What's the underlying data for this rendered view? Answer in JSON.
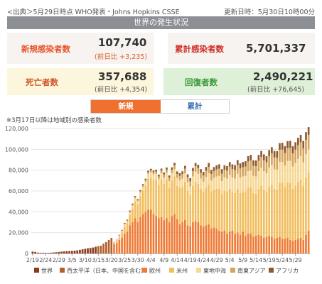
{
  "header": {
    "source": "<出典＞5月29日時点 WHO発表・Johns Hopkins CSSE",
    "updated": "更新日時：5月30日10時00分"
  },
  "banner": {
    "title": "世界の発生状況"
  },
  "stats": {
    "new_cases": {
      "label": "新規感染者数",
      "value": "107,740",
      "diff": "(前日比 +3,235)"
    },
    "total_cases": {
      "label": "累計感染者数",
      "value": "5,701,337"
    },
    "deaths": {
      "label": "死亡者数",
      "value": "357,688",
      "diff": "(前日比 +4,354)"
    },
    "recovered": {
      "label": "回復者数",
      "value": "2,490,221",
      "diff": "(前日比 +76,645)"
    }
  },
  "tabs": {
    "new": "新規",
    "cumulative": "累計"
  },
  "note": "※3月17日以降は地域別の感染者数",
  "colors": {
    "label_red": "#e8542a",
    "deaths_label": "#d0542a",
    "recovered_label": "#3a9a3a",
    "tab_active": "#f07030",
    "tab_inactive_text": "#3a6fb0"
  },
  "chart_data": {
    "type": "bar",
    "stacked": true,
    "ylim": [
      0,
      120000
    ],
    "yticks": [
      0,
      20000,
      40000,
      60000,
      80000,
      100000,
      120000
    ],
    "ytick_labels": [
      "0",
      "20,000",
      "40,000",
      "60,000",
      "80,000",
      "100,000",
      "120,000"
    ],
    "x_tick_labels": [
      "2/19",
      "2/24",
      "2/29",
      "3/5",
      "3/10",
      "3/15",
      "3/20",
      "3/25",
      "3/30",
      "4/4",
      "4/9",
      "4/14",
      "4/19",
      "4/24",
      "4/29",
      "5/4",
      "5/9",
      "5/14",
      "5/19",
      "5/24",
      "5/29"
    ],
    "x_tick_every": 5,
    "start_total_series": [
      1800,
      1500,
      800,
      600,
      700,
      500,
      600,
      700,
      1000,
      1200,
      1500,
      1800,
      2000,
      2200,
      2300,
      2500,
      2700,
      3000,
      3500,
      4000,
      4500,
      5000,
      5300,
      5700,
      6500,
      7000,
      7500,
      9500,
      11000,
      13000,
      15000
    ],
    "regions": [
      {
        "name": "欧州",
        "color": "#ef7a35"
      },
      {
        "name": "米州",
        "color": "#f2bd5c"
      },
      {
        "name": "東地中海",
        "color": "#f6d690"
      },
      {
        "name": "南東アジア",
        "color": "#d6a45c"
      },
      {
        "name": "アフリカ",
        "color": "#8c5a2e"
      }
    ],
    "legend": [
      {
        "name": "世界",
        "color": "#8b3a1a"
      },
      {
        "name": "西太平洋（日本、中国を含む）",
        "color": "#b0602c"
      },
      {
        "name": "欧州",
        "color": "#ef7a35"
      },
      {
        "name": "米州",
        "color": "#f2bd5c"
      },
      {
        "name": "東地中海",
        "color": "#f6d690"
      },
      {
        "name": "南東アジア",
        "color": "#d6a45c"
      },
      {
        "name": "アフリカ",
        "color": "#8c5a2e"
      }
    ],
    "regional_series": {
      "europe": [
        9000,
        10000,
        13000,
        15000,
        19000,
        21000,
        27000,
        30000,
        34000,
        30000,
        35000,
        38000,
        40000,
        42000,
        42000,
        38000,
        36000,
        34000,
        35000,
        32000,
        34000,
        30000,
        36000,
        38000,
        33000,
        28000,
        30000,
        32000,
        27000,
        26000,
        30000,
        31000,
        30000,
        27000,
        26000,
        27000,
        28000,
        24000,
        25000,
        24000,
        22000,
        21000,
        22000,
        19000,
        21000,
        22000,
        19000,
        20000,
        18000,
        21000,
        17000,
        19000,
        19000,
        16000,
        17000,
        18000,
        17000,
        15000,
        16000,
        17000,
        16000,
        14000,
        15000,
        16000,
        14000,
        14000,
        15000,
        13000,
        12000,
        13000,
        14000,
        15000,
        13000,
        18000,
        22000
      ],
      "americas": [
        500,
        1500,
        2500,
        5000,
        7000,
        8000,
        10000,
        13000,
        16000,
        17000,
        20000,
        22000,
        25000,
        30000,
        31000,
        33000,
        35000,
        32000,
        36000,
        35000,
        37000,
        33000,
        34000,
        36000,
        32000,
        35000,
        34000,
        37000,
        33000,
        30000,
        35000,
        38000,
        37000,
        35000,
        33000,
        36000,
        38000,
        35000,
        36000,
        38000,
        40000,
        36000,
        38000,
        40000,
        41000,
        37000,
        39000,
        42000,
        40000,
        38000,
        42000,
        44000,
        45000,
        42000,
        40000,
        44000,
        48000,
        46000,
        43000,
        47000,
        50000,
        48000,
        46000,
        52000,
        54000,
        50000,
        53000,
        55000,
        50000,
        52000,
        55000,
        56000,
        52000,
        55000,
        56000
      ],
      "east_med": [
        1000,
        1000,
        1500,
        1500,
        2000,
        2000,
        2500,
        3000,
        3000,
        3000,
        3500,
        4000,
        4000,
        4500,
        5000,
        5000,
        5500,
        5500,
        6000,
        6000,
        6500,
        6500,
        7000,
        7000,
        7500,
        7500,
        8000,
        8000,
        8500,
        8500,
        9000,
        9500,
        9500,
        10000,
        10000,
        10500,
        11000,
        11000,
        11500,
        12000,
        12500,
        12500,
        13000,
        13000,
        13500,
        14000,
        14000,
        14500,
        15000,
        15000,
        15500,
        16000,
        16000,
        16500,
        17000,
        17000,
        17500,
        18000,
        18000,
        18500,
        19000,
        19000,
        19500,
        20000,
        20000,
        20500,
        21000,
        21000,
        21500,
        22000,
        22000,
        22500,
        22500,
        22500,
        22000
      ],
      "se_asia": [
        300,
        400,
        500,
        600,
        700,
        800,
        900,
        1000,
        1100,
        1200,
        1300,
        1400,
        1500,
        1600,
        1800,
        2000,
        2200,
        2400,
        2600,
        2800,
        3000,
        3200,
        3400,
        3600,
        3800,
        4000,
        4200,
        4400,
        4600,
        4800,
        5000,
        5200,
        5400,
        5600,
        5800,
        6000,
        6200,
        6400,
        6600,
        6800,
        7000,
        7200,
        7400,
        7600,
        7800,
        8000,
        8200,
        8400,
        8600,
        8800,
        9000,
        9200,
        9400,
        9600,
        9800,
        10000,
        10200,
        10400,
        10600,
        10800,
        11000,
        11200,
        11400,
        11600,
        11800,
        12000,
        12200,
        12400,
        12600,
        12800,
        13000,
        13200,
        13400,
        13600,
        13800
      ],
      "africa": [
        200,
        300,
        400,
        500,
        600,
        700,
        800,
        900,
        1000,
        1000,
        1100,
        1200,
        1300,
        1400,
        1500,
        1600,
        1700,
        1800,
        1900,
        2000,
        2100,
        2200,
        2300,
        2400,
        2500,
        2600,
        2700,
        2800,
        2900,
        3000,
        3100,
        3200,
        3300,
        3400,
        3500,
        3600,
        3700,
        3800,
        3900,
        4000,
        4100,
        4200,
        4300,
        4400,
        4500,
        4600,
        4700,
        4800,
        4900,
        5000,
        5100,
        5200,
        5300,
        5400,
        5500,
        5600,
        5700,
        5800,
        5900,
        6000,
        6100,
        6200,
        6300,
        6400,
        6500,
        6600,
        6700,
        6800,
        6900,
        7000,
        7100,
        7200,
        7300,
        7400,
        7500
      ]
    }
  }
}
